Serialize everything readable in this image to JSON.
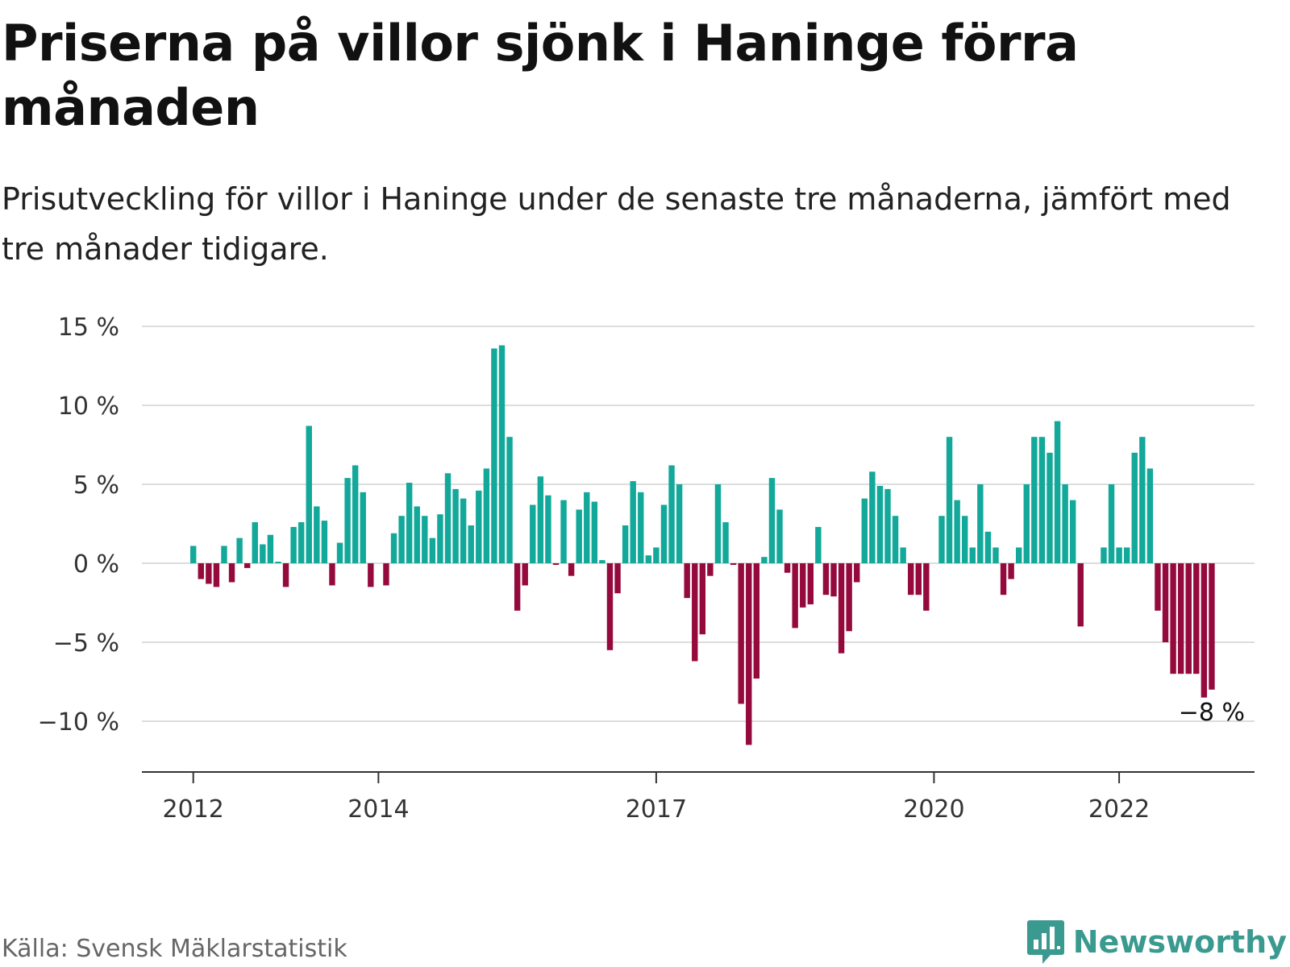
{
  "header": {
    "title": "Priserna på villor sjönk i Haninge förra månaden",
    "subtitle": "Prisutveckling för villor i Haninge under de senaste tre månaderna, jämfört med tre månader tidigare."
  },
  "footer": {
    "source": "Källa: Svensk Mäklarstatistik",
    "brand": "Newsworthy"
  },
  "colors": {
    "positive": "#12a89a",
    "negative": "#950a3c",
    "grid": "#dddddd",
    "axis": "#333333",
    "brand": "#3a9a90"
  },
  "chart_data": {
    "type": "bar",
    "title": "Priserna på villor sjönk i Haninge förra månaden",
    "subtitle": "Prisutveckling för villor i Haninge under de senaste tre månaderna, jämfört med tre månader tidigare.",
    "xlabel": "",
    "ylabel": "",
    "ylim": [
      -13,
      15
    ],
    "yticks": [
      {
        "value": 15,
        "label": "15 %"
      },
      {
        "value": 10,
        "label": "10 %"
      },
      {
        "value": 5,
        "label": "5 %"
      },
      {
        "value": 0,
        "label": "0 %"
      },
      {
        "value": -5,
        "label": "−5 %"
      },
      {
        "value": -10,
        "label": "−10 %"
      }
    ],
    "xticks": [
      {
        "index": 0,
        "label": "2012"
      },
      {
        "index": 24,
        "label": "2014"
      },
      {
        "index": 60,
        "label": "2017"
      },
      {
        "index": 96,
        "label": "2020"
      },
      {
        "index": 120,
        "label": "2022"
      }
    ],
    "grid": true,
    "legend": "none",
    "start": "2012-01",
    "values": [
      1.1,
      -1.0,
      -1.3,
      -1.5,
      1.1,
      -1.2,
      1.6,
      -0.3,
      2.6,
      1.2,
      1.8,
      0.1,
      -1.5,
      2.3,
      2.6,
      8.7,
      3.6,
      2.7,
      -1.4,
      1.3,
      5.4,
      6.2,
      4.5,
      -1.5,
      0,
      -1.4,
      1.9,
      3.0,
      5.1,
      3.6,
      3.0,
      1.6,
      3.1,
      5.7,
      4.7,
      4.1,
      2.4,
      4.6,
      6.0,
      13.6,
      13.8,
      8.0,
      -3.0,
      -1.4,
      3.7,
      5.5,
      4.3,
      -0.1,
      4.0,
      -0.8,
      3.4,
      4.5,
      3.9,
      0.2,
      -5.5,
      -1.9,
      2.4,
      5.2,
      4.5,
      0.5,
      1.0,
      3.7,
      6.2,
      5.0,
      -2.2,
      -6.2,
      -4.5,
      -0.8,
      5.0,
      2.6,
      -0.1,
      -8.9,
      -11.5,
      -7.3,
      0.4,
      5.4,
      3.4,
      -0.6,
      -4.1,
      -2.8,
      -2.6,
      2.3,
      -2.0,
      -2.1,
      -5.7,
      -4.3,
      -1.2,
      4.1,
      5.8,
      4.9,
      4.7,
      3.0,
      1.0,
      -2.0,
      -2.0,
      -3.0,
      0,
      3.0,
      8.0,
      4.0,
      3.0,
      1.0,
      5.0,
      2.0,
      1.0,
      -2.0,
      -1.0,
      1.0,
      5.0,
      8.0,
      8.0,
      7.0,
      9.0,
      5.0,
      4.0,
      -4.0,
      0,
      0,
      1.0,
      5.0,
      1.0,
      1.0,
      7.0,
      8.0,
      6.0,
      -3.0,
      -5.0,
      -7.0,
      -7.0,
      -7.0,
      -7.0,
      -8.5,
      -8.0
    ],
    "last_label": "−8 %"
  }
}
